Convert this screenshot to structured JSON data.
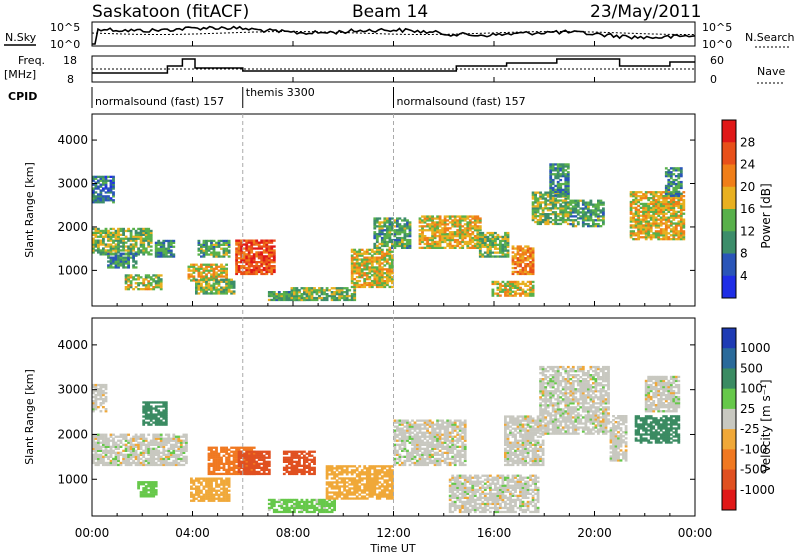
{
  "header": {
    "title": "Saskatoon (fitACF)",
    "beam": "Beam 14",
    "date": "23/May/2011"
  },
  "noise_panel": {
    "left_label": "N.Sky",
    "right_label": "N.Search",
    "left_ticks": [
      "10^5",
      "10^0"
    ],
    "right_ticks": [
      "10^5",
      "10^0"
    ]
  },
  "freq_panel": {
    "left_label_1": "Freq.",
    "left_label_2": "[MHz]",
    "right_label": "Nave",
    "left_ticks": [
      "18",
      "8"
    ],
    "right_ticks": [
      "60",
      "0"
    ]
  },
  "cpid": {
    "label": "CPID",
    "segments": [
      {
        "name": "normalsound (fast) 157",
        "start_hour": 0
      },
      {
        "name": "themis 3300",
        "start_hour": 6
      },
      {
        "name": "normalsound (fast) 157",
        "start_hour": 12
      }
    ]
  },
  "axes": {
    "xlabel": "Time UT",
    "x_ticks": [
      "00:00",
      "04:00",
      "08:00",
      "12:00",
      "16:00",
      "20:00",
      "00:00"
    ],
    "ylabel": "Slant Range [km]",
    "y_ticks": [
      "1000",
      "2000",
      "3000",
      "4000"
    ]
  },
  "power_colorbar": {
    "label": "Power [dB]",
    "ticks": [
      "4",
      "8",
      "12",
      "16",
      "20",
      "24",
      "28"
    ]
  },
  "velocity_colorbar": {
    "label": "Velocity [m s⁻¹]",
    "ticks": [
      "1000",
      "500",
      "100",
      "25",
      "-25",
      "-100",
      "-500",
      "-1000"
    ]
  },
  "colors": {
    "power": [
      "#1f2ee6",
      "#2a55b8",
      "#3c8d6a",
      "#58b04a",
      "#e8b020",
      "#f07e18",
      "#e8501a",
      "#e01818"
    ],
    "velocity": [
      "#1e3bb4",
      "#2a6a9a",
      "#3a8b62",
      "#66c84a",
      "#c8c8c0",
      "#f0a838",
      "#f07820",
      "#e05020",
      "#e01818"
    ]
  },
  "chart_data": [
    {
      "type": "heatmap",
      "panel": "power",
      "title": "",
      "xlabel": "Time UT",
      "ylabel": "Slant Range [km]",
      "xlim": [
        0,
        24
      ],
      "ylim": [
        180,
        4600
      ],
      "colorbar_label": "Power [dB]",
      "regions": [
        {
          "t": [
            0.0,
            0.8
          ],
          "r": [
            2550,
            3150
          ],
          "v": 8
        },
        {
          "t": [
            0.0,
            2.4
          ],
          "r": [
            1350,
            1950
          ],
          "v": 14
        },
        {
          "t": [
            0.6,
            1.8
          ],
          "r": [
            1050,
            1400
          ],
          "v": 10
        },
        {
          "t": [
            1.3,
            2.8
          ],
          "r": [
            550,
            900
          ],
          "v": 16
        },
        {
          "t": [
            2.5,
            3.3
          ],
          "r": [
            1300,
            1700
          ],
          "v": 10
        },
        {
          "t": [
            3.8,
            5.3
          ],
          "r": [
            750,
            1150
          ],
          "v": 18
        },
        {
          "t": [
            4.1,
            5.6
          ],
          "r": [
            450,
            800
          ],
          "v": 14
        },
        {
          "t": [
            4.2,
            5.4
          ],
          "r": [
            1300,
            1700
          ],
          "v": 12
        },
        {
          "t": [
            5.7,
            7.2
          ],
          "r": [
            900,
            1700
          ],
          "v": 26
        },
        {
          "t": [
            7.0,
            8.4
          ],
          "r": [
            300,
            500
          ],
          "v": 12
        },
        {
          "t": [
            7.9,
            10.4
          ],
          "r": [
            300,
            600
          ],
          "v": 14
        },
        {
          "t": [
            10.3,
            11.9
          ],
          "r": [
            600,
            1500
          ],
          "v": 18
        },
        {
          "t": [
            11.2,
            12.6
          ],
          "r": [
            1500,
            2200
          ],
          "v": 12
        },
        {
          "t": [
            13.0,
            15.4
          ],
          "r": [
            1500,
            2250
          ],
          "v": 18
        },
        {
          "t": [
            15.4,
            16.6
          ],
          "r": [
            1300,
            1850
          ],
          "v": 14
        },
        {
          "t": [
            15.9,
            17.6
          ],
          "r": [
            400,
            750
          ],
          "v": 18
        },
        {
          "t": [
            16.7,
            17.6
          ],
          "r": [
            900,
            1550
          ],
          "v": 22
        },
        {
          "t": [
            17.5,
            19.0
          ],
          "r": [
            2050,
            2800
          ],
          "v": 14
        },
        {
          "t": [
            18.2,
            19.0
          ],
          "r": [
            2700,
            3450
          ],
          "v": 10
        },
        {
          "t": [
            19.0,
            20.4
          ],
          "r": [
            2000,
            2600
          ],
          "v": 12
        },
        {
          "t": [
            21.4,
            23.6
          ],
          "r": [
            1700,
            2800
          ],
          "v": 18
        },
        {
          "t": [
            22.8,
            23.5
          ],
          "r": [
            2700,
            3350
          ],
          "v": 10
        }
      ]
    },
    {
      "type": "heatmap",
      "panel": "velocity",
      "title": "",
      "xlabel": "Time UT",
      "ylabel": "Slant Range [km]",
      "xlim": [
        0,
        24
      ],
      "ylim": [
        180,
        4600
      ],
      "colorbar_label": "Velocity [m s⁻¹]",
      "regions": [
        {
          "t": [
            0.0,
            3.8
          ],
          "r": [
            1300,
            2000
          ],
          "v": 0
        },
        {
          "t": [
            0.0,
            0.6
          ],
          "r": [
            2500,
            3100
          ],
          "v": 0
        },
        {
          "t": [
            1.8,
            2.6
          ],
          "r": [
            600,
            950
          ],
          "v": 60
        },
        {
          "t": [
            2.0,
            3.0
          ],
          "r": [
            2200,
            2700
          ],
          "v": 200
        },
        {
          "t": [
            3.9,
            5.4
          ],
          "r": [
            500,
            1000
          ],
          "v": -60
        },
        {
          "t": [
            4.6,
            6.4
          ],
          "r": [
            1100,
            1700
          ],
          "v": -300
        },
        {
          "t": [
            5.8,
            7.0
          ],
          "r": [
            1100,
            1600
          ],
          "v": -700
        },
        {
          "t": [
            7.0,
            9.6
          ],
          "r": [
            250,
            550
          ],
          "v": 50
        },
        {
          "t": [
            7.6,
            8.8
          ],
          "r": [
            1100,
            1600
          ],
          "v": -700
        },
        {
          "t": [
            9.3,
            11.9
          ],
          "r": [
            550,
            1300
          ],
          "v": -60
        },
        {
          "t": [
            12.0,
            14.8
          ],
          "r": [
            1300,
            2300
          ],
          "v": 0
        },
        {
          "t": [
            14.2,
            17.8
          ],
          "r": [
            250,
            1100
          ],
          "v": 0
        },
        {
          "t": [
            16.4,
            18.0
          ],
          "r": [
            1300,
            2400
          ],
          "v": 0
        },
        {
          "t": [
            17.8,
            20.6
          ],
          "r": [
            2000,
            3500
          ],
          "v": 0
        },
        {
          "t": [
            20.6,
            21.3
          ],
          "r": [
            1400,
            2400
          ],
          "v": 0
        },
        {
          "t": [
            21.6,
            23.4
          ],
          "r": [
            1800,
            2400
          ],
          "v": 400
        },
        {
          "t": [
            22.0,
            23.4
          ],
          "r": [
            2500,
            3300
          ],
          "v": 0
        }
      ]
    }
  ]
}
